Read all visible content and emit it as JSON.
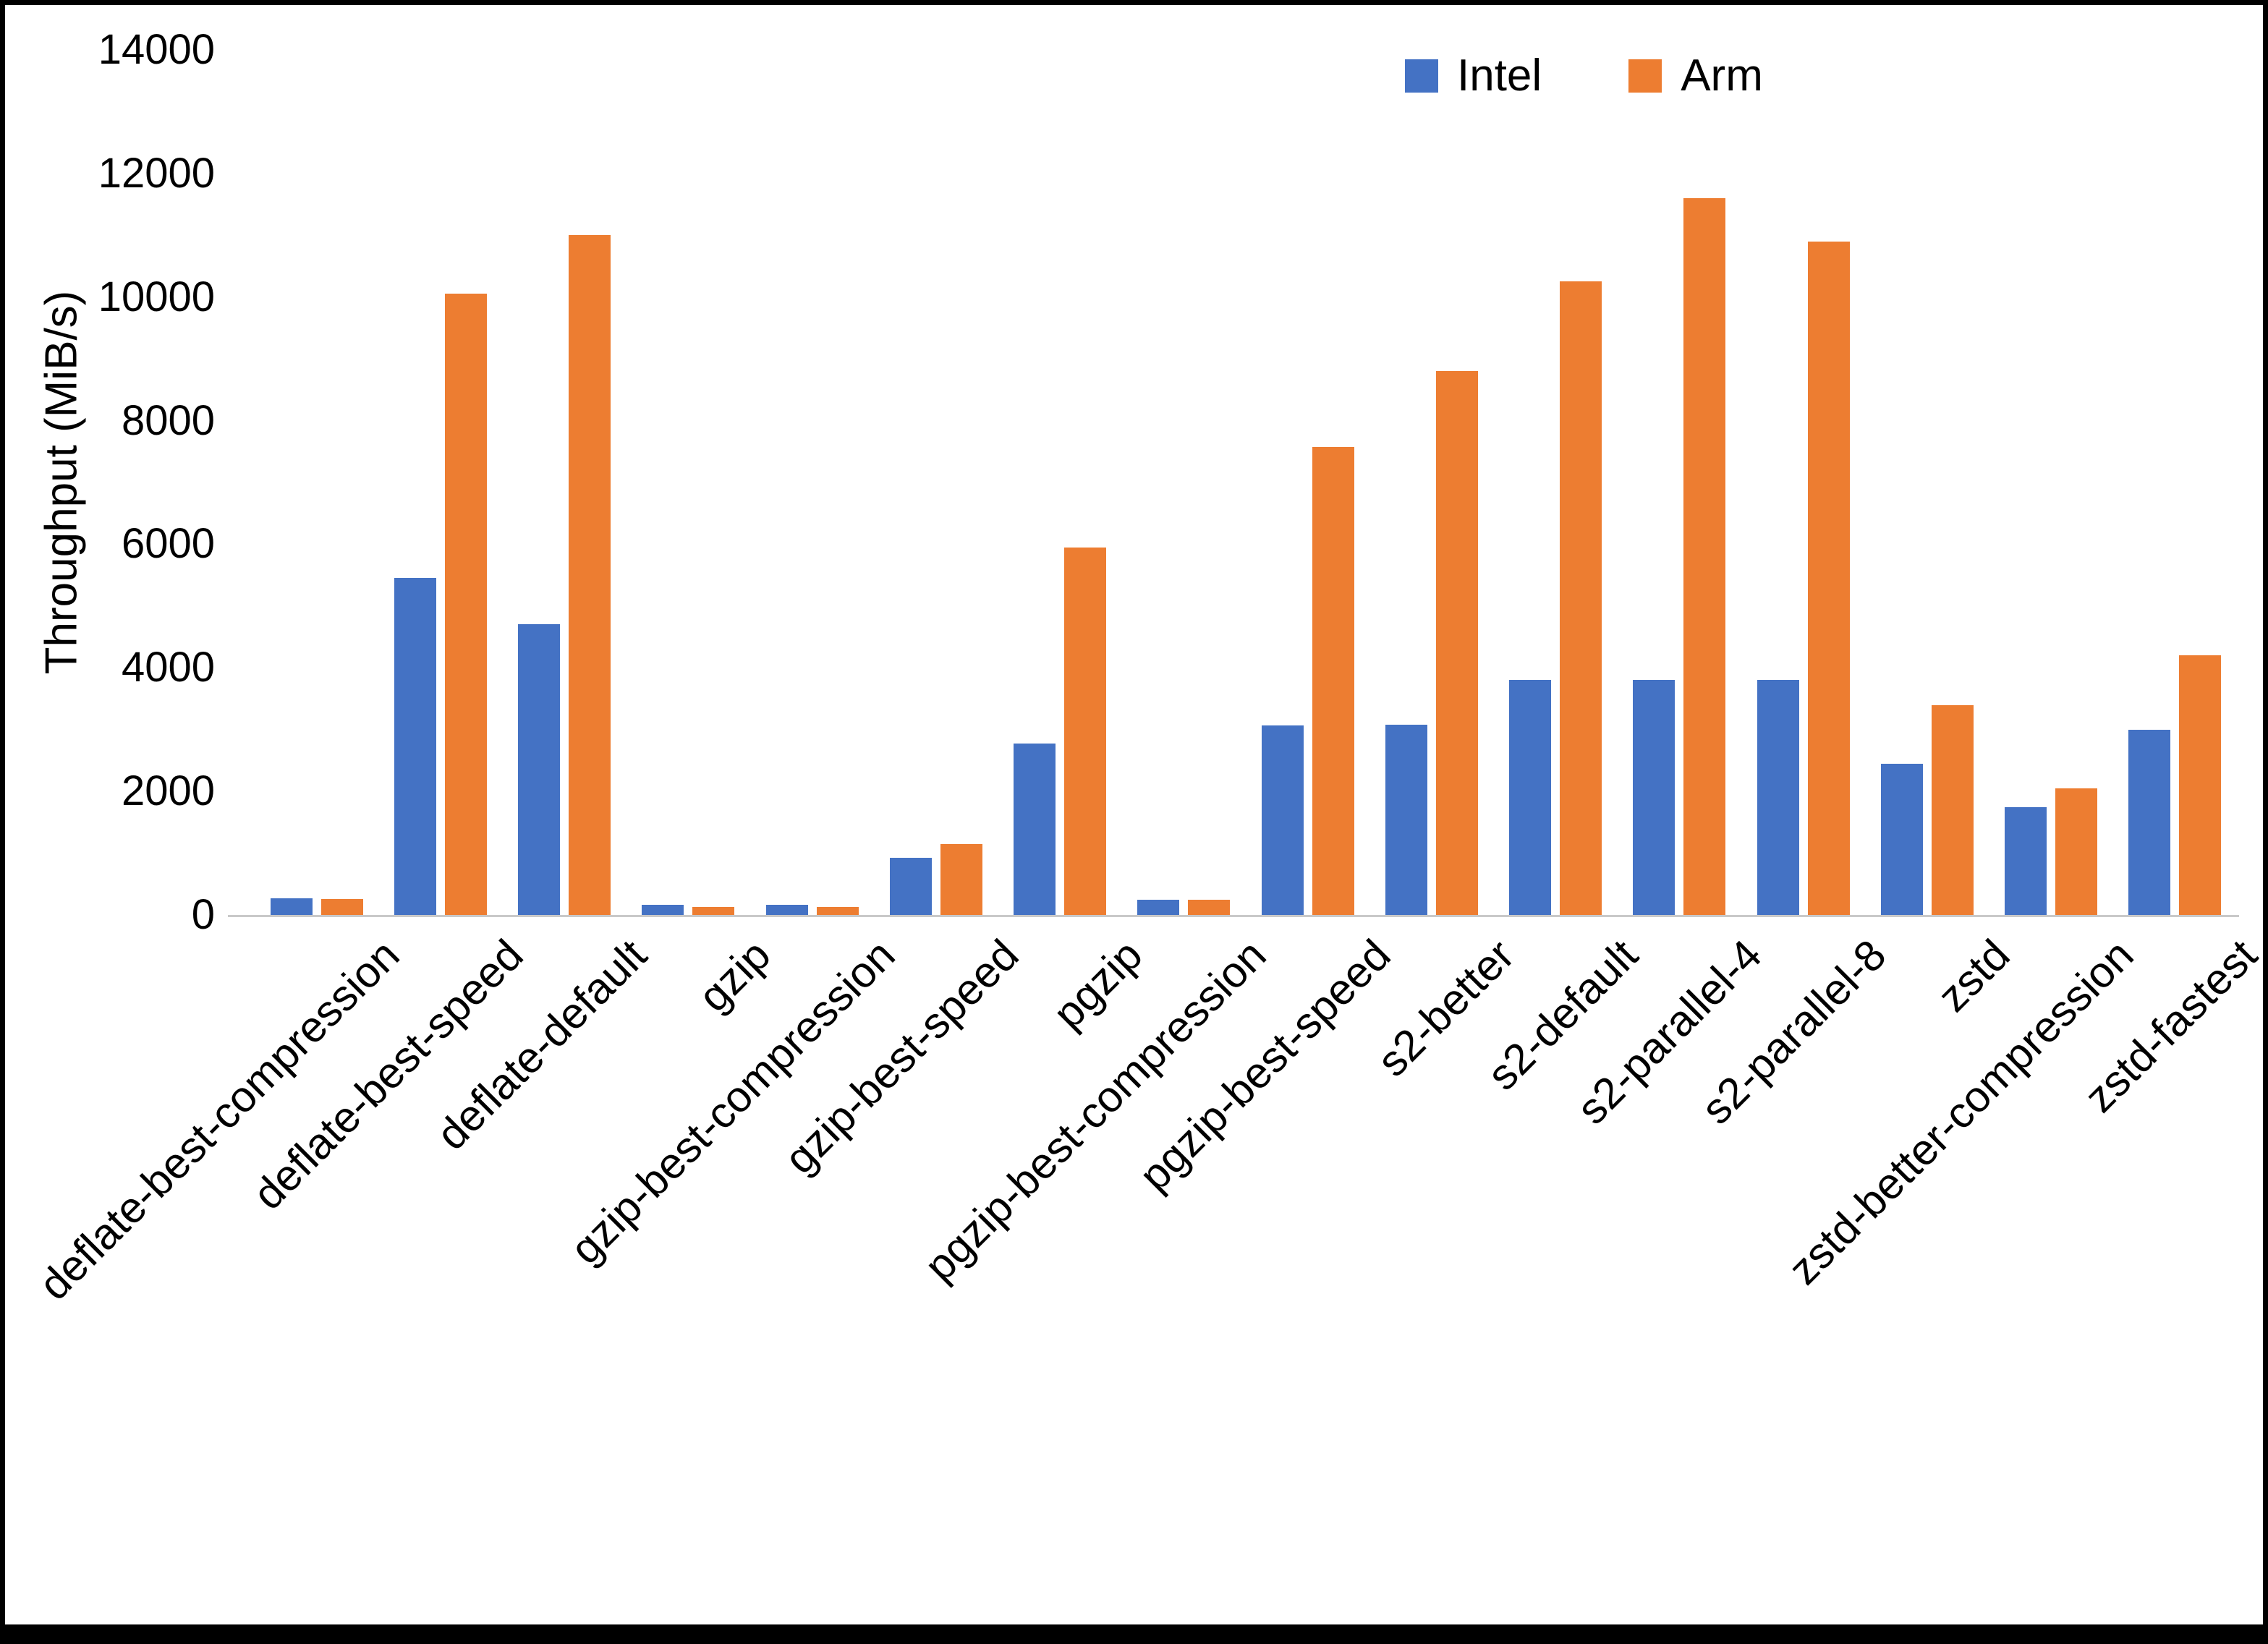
{
  "chart_data": {
    "type": "bar",
    "title": "",
    "xlabel": "",
    "ylabel": "Throughput (MiB/s)",
    "ylim": [
      0,
      14000
    ],
    "yticks": [
      0,
      2000,
      4000,
      6000,
      8000,
      10000,
      12000,
      14000
    ],
    "grid": false,
    "legend_position": "top-right-inside",
    "categories": [
      "deflate-best-compression",
      "deflate-best-speed",
      "deflate-default",
      "gzip",
      "gzip-best-compression",
      "gzip-best-speed",
      "pgzip",
      "pgzip-best-compression",
      "pgzip-best-speed",
      "s2-better",
      "s2-default",
      "s2-parallel-4",
      "s2-parallel-8",
      "zstd",
      "zstd-better-compression",
      "zstd-fastest"
    ],
    "series": [
      {
        "name": "Intel",
        "color": "#4472C4",
        "values": [
          270,
          5450,
          4700,
          160,
          160,
          920,
          2780,
          250,
          3070,
          3080,
          3800,
          3800,
          3800,
          2450,
          1750,
          3000
        ]
      },
      {
        "name": "Arm",
        "color": "#ED7D31",
        "values": [
          260,
          10050,
          11000,
          130,
          130,
          1150,
          5950,
          250,
          7570,
          8800,
          10250,
          11600,
          10900,
          3400,
          2050,
          4200
        ]
      }
    ]
  }
}
